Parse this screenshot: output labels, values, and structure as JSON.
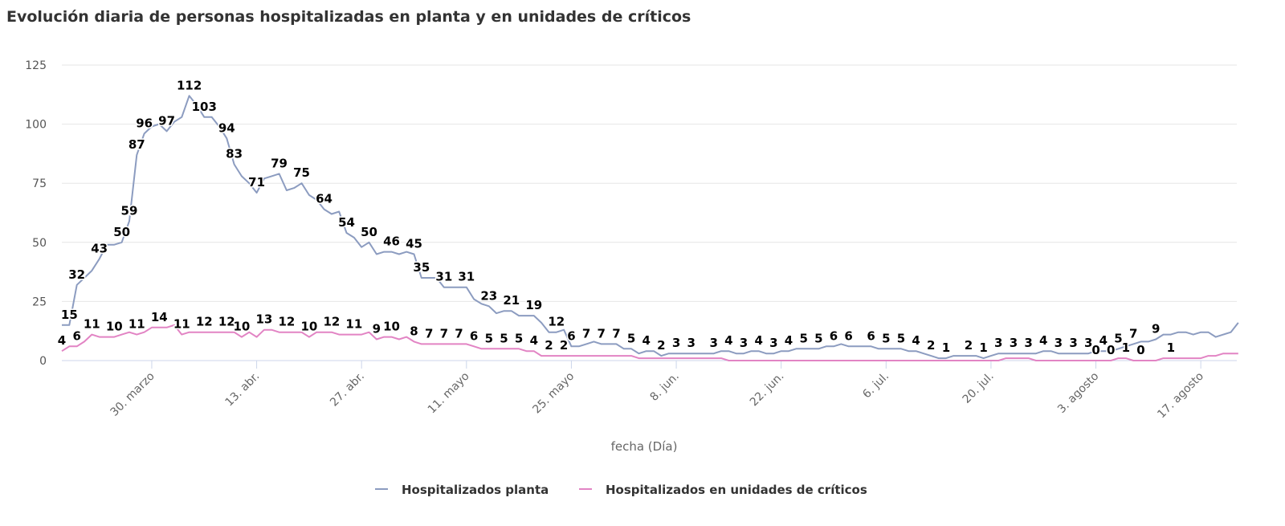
{
  "chart_data": {
    "type": "line",
    "title": "Evolución diaria de personas hospitalizadas en planta y en unidades de críticos",
    "xlabel": "fecha (Día)",
    "ylabel": "",
    "ylim": [
      0,
      125
    ],
    "yticks": [
      0,
      25,
      50,
      75,
      100,
      125
    ],
    "grid": true,
    "legend_position": "bottom",
    "xticks": [
      {
        "x": "30/03",
        "label": "30. marzo"
      },
      {
        "x": "13/04",
        "label": "13. abr."
      },
      {
        "x": "27/04",
        "label": "27. abr."
      },
      {
        "x": "11/05",
        "label": "11. mayo"
      },
      {
        "x": "25/05",
        "label": "25. mayo"
      },
      {
        "x": "08/06",
        "label": "8. jun."
      },
      {
        "x": "22/06",
        "label": "22. jun."
      },
      {
        "x": "06/07",
        "label": "6. jul."
      },
      {
        "x": "20/07",
        "label": "20. jul."
      },
      {
        "x": "03/08",
        "label": "3. agosto"
      },
      {
        "x": "17/08",
        "label": "17. agosto"
      }
    ],
    "x": [
      "18/03",
      "19/03",
      "20/03",
      "21/03",
      "22/03",
      "23/03",
      "24/03",
      "25/03",
      "26/03",
      "27/03",
      "28/03",
      "29/03",
      "30/03",
      "31/03",
      "01/04",
      "02/04",
      "03/04",
      "04/04",
      "05/04",
      "06/04",
      "07/04",
      "08/04",
      "09/04",
      "10/04",
      "11/04",
      "12/04",
      "13/04",
      "14/04",
      "15/04",
      "16/04",
      "17/04",
      "18/04",
      "19/04",
      "20/04",
      "21/04",
      "22/04",
      "23/04",
      "24/04",
      "25/04",
      "26/04",
      "27/04",
      "28/04",
      "29/04",
      "30/04",
      "01/05",
      "02/05",
      "03/05",
      "04/05",
      "05/05",
      "06/05",
      "07/05",
      "08/05",
      "09/05",
      "10/05",
      "11/05",
      "12/05",
      "13/05",
      "14/05",
      "15/05",
      "16/05",
      "17/05",
      "18/05",
      "19/05",
      "20/05",
      "21/05",
      "22/05",
      "23/05",
      "24/05",
      "25/05",
      "26/05",
      "27/05",
      "28/05",
      "29/05",
      "30/05",
      "31/05",
      "01/06",
      "02/06",
      "03/06",
      "04/06",
      "05/06",
      "06/06",
      "07/06",
      "08/06",
      "09/06",
      "10/06",
      "11/06",
      "12/06",
      "13/06",
      "14/06",
      "15/06",
      "16/06",
      "17/06",
      "18/06",
      "19/06",
      "20/06",
      "21/06",
      "22/06",
      "23/06",
      "24/06",
      "25/06",
      "26/06",
      "27/06",
      "28/06",
      "29/06",
      "30/06",
      "01/07",
      "02/07",
      "03/07",
      "04/07",
      "05/07",
      "06/07",
      "07/07",
      "08/07",
      "09/07",
      "10/07",
      "11/07",
      "12/07",
      "13/07",
      "14/07",
      "15/07",
      "16/07",
      "17/07",
      "18/07",
      "19/07",
      "20/07",
      "21/07",
      "22/07",
      "23/07",
      "24/07",
      "25/07",
      "26/07",
      "27/07",
      "28/07",
      "29/07",
      "30/07",
      "31/07",
      "01/08",
      "02/08",
      "03/08",
      "04/08",
      "05/08",
      "06/08",
      "07/08",
      "08/08",
      "09/08",
      "10/08",
      "11/08",
      "12/08",
      "13/08",
      "14/08",
      "15/08",
      "16/08",
      "17/08",
      "18/08",
      "19/08",
      "20/08",
      "21/08",
      "22/08"
    ],
    "series": [
      {
        "name": "Hospitalizados planta",
        "color": "#8c9cc0",
        "values": [
          15,
          15,
          32,
          35,
          38,
          43,
          49,
          49,
          50,
          59,
          87,
          96,
          99,
          100,
          97,
          101,
          103,
          112,
          108,
          103,
          103,
          99,
          94,
          83,
          78,
          75,
          71,
          77,
          78,
          79,
          72,
          73,
          75,
          70,
          68,
          64,
          62,
          63,
          54,
          52,
          48,
          50,
          45,
          46,
          46,
          45,
          46,
          45,
          35,
          35,
          35,
          31,
          31,
          31,
          31,
          26,
          24,
          23,
          20,
          21,
          21,
          19,
          19,
          19,
          16,
          12,
          12,
          13,
          6,
          6,
          7,
          8,
          7,
          7,
          7,
          5,
          5,
          3,
          4,
          4,
          2,
          3,
          3,
          3,
          3,
          3,
          3,
          3,
          4,
          4,
          3,
          3,
          4,
          4,
          3,
          3,
          4,
          4,
          5,
          5,
          5,
          5,
          6,
          6,
          7,
          6,
          6,
          6,
          6,
          5,
          5,
          5,
          5,
          4,
          4,
          3,
          2,
          1,
          1,
          2,
          2,
          2,
          2,
          1,
          2,
          3,
          3,
          3,
          3,
          3,
          3,
          4,
          4,
          3,
          3,
          3,
          3,
          3,
          4,
          4,
          4,
          5,
          6,
          7,
          8,
          8,
          9,
          11,
          11,
          12,
          12,
          11,
          12,
          12,
          10,
          11,
          12,
          16
        ],
        "labeled_x": [
          "19/03",
          "20/03",
          "23/03",
          "26/03",
          "27/03",
          "28/03",
          "29/03",
          "01/04",
          "04/04",
          "06/04",
          "09/04",
          "10/04",
          "13/04",
          "16/04",
          "19/04",
          "22/04",
          "25/04",
          "28/04",
          "01/05",
          "04/05",
          "05/05",
          "08/05",
          "11/05",
          "14/05",
          "17/05",
          "20/05",
          "23/05",
          "25/05",
          "27/05",
          "29/05",
          "31/05",
          "02/06",
          "04/06",
          "06/06",
          "08/06",
          "10/06",
          "13/06",
          "15/06",
          "17/06",
          "19/06",
          "21/06",
          "23/06",
          "25/06",
          "27/06",
          "29/06",
          "01/07",
          "04/07",
          "06/07",
          "08/07",
          "10/07",
          "12/07",
          "14/07",
          "17/07",
          "19/07",
          "21/07",
          "23/07",
          "25/07",
          "27/07",
          "29/07",
          "31/07",
          "02/08",
          "04/08",
          "06/08",
          "08/08",
          "11/08"
        ]
      },
      {
        "name": "Hospitalizados en unidades de críticos",
        "color": "#e284c4",
        "values": [
          4,
          6,
          6,
          8,
          11,
          10,
          10,
          10,
          11,
          12,
          11,
          12,
          14,
          14,
          14,
          15,
          11,
          12,
          12,
          12,
          12,
          12,
          12,
          12,
          10,
          12,
          10,
          13,
          13,
          12,
          12,
          12,
          12,
          10,
          12,
          12,
          12,
          11,
          11,
          11,
          11,
          12,
          9,
          10,
          10,
          9,
          10,
          8,
          7,
          7,
          7,
          7,
          7,
          7,
          7,
          6,
          5,
          5,
          5,
          5,
          5,
          5,
          4,
          4,
          2,
          2,
          2,
          2,
          2,
          2,
          2,
          2,
          2,
          2,
          2,
          2,
          2,
          1,
          1,
          1,
          1,
          1,
          1,
          1,
          1,
          1,
          1,
          1,
          1,
          0,
          0,
          0,
          0,
          0,
          0,
          0,
          0,
          0,
          0,
          0,
          0,
          0,
          0,
          0,
          0,
          0,
          0,
          0,
          0,
          0,
          0,
          0,
          0,
          0,
          0,
          0,
          0,
          0,
          0,
          0,
          0,
          0,
          0,
          0,
          0,
          0,
          1,
          1,
          1,
          1,
          0,
          0,
          0,
          0,
          0,
          0,
          0,
          0,
          0,
          0,
          0,
          1,
          1,
          0,
          0,
          0,
          0,
          1,
          1,
          1,
          1,
          1,
          1,
          2,
          2,
          3,
          3,
          3
        ],
        "labeled_x": [
          "18/03",
          "20/03",
          "22/03",
          "25/03",
          "28/03",
          "31/03",
          "03/04",
          "06/04",
          "09/04",
          "11/04",
          "14/04",
          "17/04",
          "20/04",
          "23/04",
          "26/04",
          "29/04",
          "01/05",
          "04/05",
          "06/05",
          "08/05",
          "10/05",
          "12/05",
          "14/05",
          "16/05",
          "18/05",
          "20/05",
          "22/05",
          "24/05",
          "03/08",
          "05/08",
          "07/08",
          "09/08",
          "13/08"
        ]
      }
    ]
  }
}
